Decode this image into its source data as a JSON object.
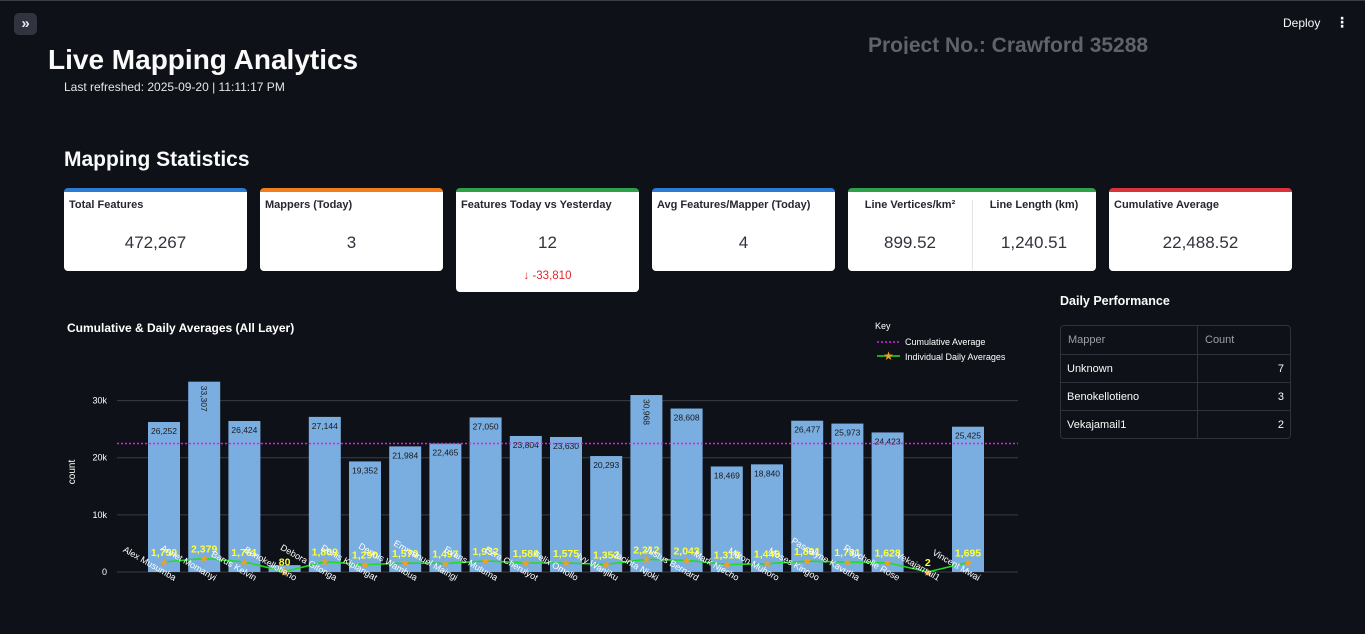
{
  "header": {
    "sidebar_toggle": "»",
    "deploy_label": "Deploy",
    "menu_icon": "⋮",
    "ghost_title": "Project No.: Crawford 35288"
  },
  "page": {
    "title": "Live Mapping Analytics",
    "refreshed": "Last refreshed: 2025-09-20 | 11:11:17 PM",
    "section_title": "Mapping Statistics"
  },
  "cards": {
    "total": {
      "label": "Total Features",
      "value": "472,267",
      "color": "#2b7bd0"
    },
    "mappers": {
      "label": "Mappers (Today)",
      "value": "3",
      "color": "#f07f1b"
    },
    "today_vs_yesterday": {
      "label": "Features Today vs Yesterday",
      "value": "12",
      "delta": "↓ -33,810",
      "color": "#2ea04a"
    },
    "avg_per_mapper": {
      "label": "Avg Features/Mapper (Today)",
      "value": "4",
      "color": "#2b7bd0"
    },
    "line_vertices": {
      "label": "Line Vertices/km²",
      "value": "899.52"
    },
    "line_length": {
      "label": "Line Length (km)",
      "value": "1,240.51",
      "color": "#2ea04a"
    },
    "cumulative_avg": {
      "label": "Cumulative Average",
      "value": "22,488.52",
      "color": "#d9323a"
    }
  },
  "chart_data": {
    "type": "bar",
    "title": "Cumulative & Daily Averages (All Layer)",
    "ylabel": "count",
    "xlabel": "",
    "ylim": [
      0,
      35000
    ],
    "yticks": [
      0,
      10000,
      20000,
      30000
    ],
    "ytick_labels": [
      "0",
      "10k",
      "20k",
      "30k"
    ],
    "legend_title": "Key",
    "legend_position": "top-right",
    "categories": [
      "Alex Musumba",
      "Annet Momanyi",
      "Barus Kelvin",
      "Benokellotieno",
      "Debora Gitonga",
      "Denis Kiplangat",
      "Dennis Wambua",
      "Emmanuel Maingi",
      "Evans Mutuma",
      "Ezra Cheruiyot",
      "Felix Omollo",
      "Ivy Wanjiku",
      "Jacinta Njoki",
      "Justus Bernard",
      "Mark Njecho",
      "Milton Muhoro",
      "Moses Kingoo",
      "Pascalyne Kavutha",
      "Raychelle Rose",
      "Vekajamail1",
      "Vincent Mwai"
    ],
    "values": [
      26252,
      33307,
      26424,
      1200,
      27144,
      19352,
      21984,
      22465,
      27050,
      23804,
      23630,
      20293,
      30968,
      28608,
      18469,
      18840,
      26477,
      25973,
      24423,
      0,
      25425
    ],
    "bar_labels": [
      "26,252",
      "33,307",
      "26,424",
      "",
      "27,144",
      "19,352",
      "21,984",
      "22,465",
      "27,050",
      "23,804",
      "23,630",
      "20,293",
      "30,968",
      "28,608",
      "18,469",
      "18,840",
      "26,477",
      "25,973",
      "24,423",
      "",
      "25,425"
    ],
    "bar_color": "#7aade0",
    "cumulative_average": {
      "name": "Cumulative Average",
      "value": 22488.52,
      "color": "#e81be8"
    },
    "daily_averages": {
      "name": "Individual Daily Averages",
      "values": [
        1750,
        2379,
        1761,
        80,
        1809,
        1290,
        1570,
        1497,
        1932,
        1586,
        1575,
        1352,
        2212,
        2043,
        1319,
        1449,
        1891,
        1731,
        1628,
        2,
        1695
      ],
      "labels": [
        "1,750",
        "2,379",
        "1,761",
        "80",
        "1,809",
        "1,290",
        "1,570",
        "1,497",
        "1,932",
        "1,586",
        "1,575",
        "1,352",
        "2,212",
        "2,043",
        "1,319",
        "1,449",
        "1,891",
        "1,731",
        "1,628",
        "2",
        "1,695"
      ],
      "line_color": "#22dd22",
      "marker_color": "#f0a020",
      "label_color": "#ffff33"
    }
  },
  "daily_performance": {
    "title": "Daily Performance",
    "columns": [
      "Mapper",
      "Count"
    ],
    "rows": [
      {
        "mapper": "Unknown",
        "count": "7"
      },
      {
        "mapper": "Benokellotieno",
        "count": "3"
      },
      {
        "mapper": "Vekajamail1",
        "count": "2"
      }
    ]
  }
}
